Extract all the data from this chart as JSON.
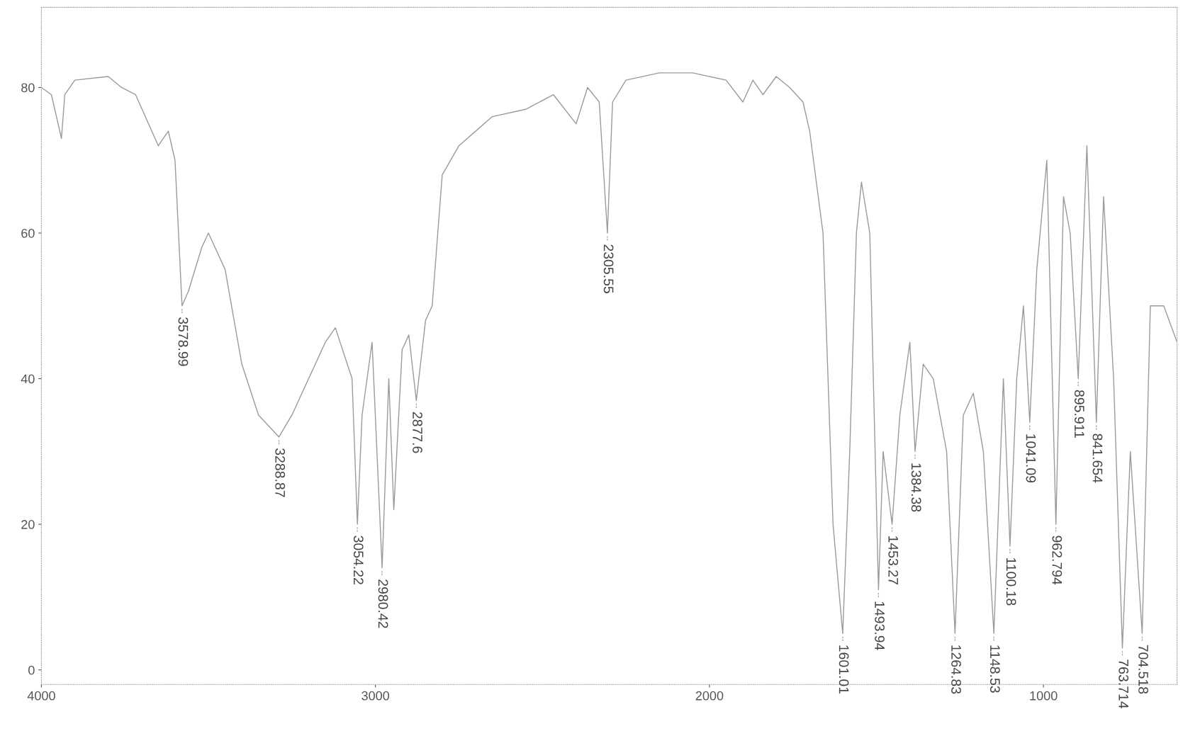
{
  "chart_data": {
    "type": "line",
    "xlim": [
      4000,
      600
    ],
    "ylim": [
      -2,
      91
    ],
    "xticks": [
      4000,
      3000,
      2000,
      1000
    ],
    "yticks": [
      0,
      20,
      40,
      60,
      80
    ],
    "grid": false,
    "legend": false,
    "marker": "none",
    "line_style": "solid",
    "series": [
      {
        "color": "#9a9a9a",
        "x": [
          4000,
          3970,
          3940,
          3930,
          3900,
          3800,
          3760,
          3718,
          3650,
          3620,
          3600,
          3579,
          3560,
          3520,
          3500,
          3450,
          3400,
          3350,
          3289,
          3250,
          3150,
          3120,
          3070,
          3054,
          3040,
          3010,
          2980,
          2960,
          2945,
          2920,
          2900,
          2877.6,
          2850,
          2830,
          2800,
          2750,
          2700,
          2650,
          2550,
          2467,
          2399,
          2365,
          2330,
          2305.55,
          2290,
          2250,
          2150,
          2050,
          1950,
          1900,
          1870,
          1840,
          1800,
          1760,
          1720,
          1700,
          1660,
          1630,
          1601.01,
          1580,
          1560,
          1545,
          1520,
          1493.94,
          1480,
          1453.27,
          1430,
          1400,
          1384.38,
          1360,
          1330,
          1290,
          1264.83,
          1240,
          1210,
          1180,
          1148.53,
          1120,
          1100.18,
          1080,
          1060,
          1041.09,
          1020,
          990,
          962.794,
          940,
          920,
          895.911,
          870,
          841.654,
          820,
          790,
          763.714,
          740,
          704.518,
          680,
          640,
          600
        ],
        "values": [
          80,
          79,
          73,
          79,
          81,
          81.5,
          80,
          79,
          72,
          74,
          70,
          50,
          52,
          58,
          60,
          55,
          42,
          35,
          32,
          35,
          45,
          47,
          40,
          20,
          35,
          45,
          14,
          40,
          22,
          44,
          46,
          37,
          48,
          50,
          68,
          72,
          74,
          76,
          77,
          79,
          75,
          80,
          78,
          60,
          78,
          81,
          82,
          82,
          81,
          78,
          81,
          79,
          81.5,
          80,
          78,
          74,
          60,
          20,
          5,
          30,
          60,
          67,
          60,
          11,
          30,
          20,
          35,
          45,
          30,
          42,
          40,
          30,
          5,
          35,
          38,
          30,
          5,
          40,
          17,
          40,
          50,
          34,
          55,
          70,
          20,
          65,
          60,
          40,
          72,
          34,
          65,
          40,
          3,
          30,
          5,
          50,
          50,
          45
        ]
      }
    ],
    "annotations": [
      {
        "text": "3578.99",
        "x": 3578.99,
        "y": 50
      },
      {
        "text": "3288.87",
        "x": 3288.87,
        "y": 32
      },
      {
        "text": "3054.22",
        "x": 3054.22,
        "y": 20
      },
      {
        "text": "2980.42",
        "x": 2980.42,
        "y": 14
      },
      {
        "text": "2877.6",
        "x": 2877.6,
        "y": 37
      },
      {
        "text": "2305.55",
        "x": 2305.55,
        "y": 60
      },
      {
        "text": "1601.01",
        "x": 1601.01,
        "y": 5
      },
      {
        "text": "1493.94",
        "x": 1493.94,
        "y": 11
      },
      {
        "text": "1453.27",
        "x": 1453.27,
        "y": 20
      },
      {
        "text": "1384.38",
        "x": 1384.38,
        "y": 30
      },
      {
        "text": "1264.83",
        "x": 1264.83,
        "y": 5
      },
      {
        "text": "1148.53",
        "x": 1148.53,
        "y": 5
      },
      {
        "text": "1100.18",
        "x": 1100.18,
        "y": 17
      },
      {
        "text": "1041.09",
        "x": 1041.09,
        "y": 34
      },
      {
        "text": "962.794",
        "x": 962.794,
        "y": 20
      },
      {
        "text": "895.911",
        "x": 895.911,
        "y": 40
      },
      {
        "text": "841.654",
        "x": 841.654,
        "y": 34
      },
      {
        "text": "763.714",
        "x": 763.714,
        "y": 3
      },
      {
        "text": "704.518",
        "x": 704.518,
        "y": 5
      }
    ]
  }
}
